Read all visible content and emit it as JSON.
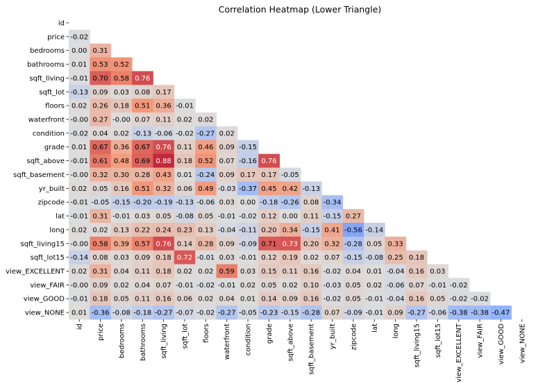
{
  "chart_data": {
    "type": "heatmap",
    "title": "Correlation Heatmap (Lower Triangle)",
    "xlabel": "",
    "ylabel": "",
    "colormap": "coolwarm",
    "vmin": -1,
    "vmax": 1,
    "colorbar": false,
    "mask": "upper-triangle-including-diagonal",
    "variables": [
      "id",
      "price",
      "bedrooms",
      "bathrooms",
      "sqft_living",
      "sqft_lot",
      "floors",
      "waterfront",
      "condition",
      "grade",
      "sqft_above",
      "sqft_basement",
      "yr_built",
      "zipcode",
      "lat",
      "long",
      "sqft_living15",
      "sqft_lot15",
      "view_EXCELLENT",
      "view_FAIR",
      "view_GOOD",
      "view_NONE"
    ],
    "lower_triangle": [
      [],
      [
        "-0.02"
      ],
      [
        "0.00",
        "0.31"
      ],
      [
        "0.01",
        "0.53",
        "0.52"
      ],
      [
        "-0.01",
        "0.70",
        "0.58",
        "0.76"
      ],
      [
        "-0.13",
        "0.09",
        "0.03",
        "0.08",
        "0.17"
      ],
      [
        "0.02",
        "0.26",
        "0.18",
        "0.51",
        "0.36",
        "-0.01"
      ],
      [
        "-0.00",
        "0.27",
        "-0.00",
        "0.07",
        "0.11",
        "0.02",
        "0.02"
      ],
      [
        "-0.02",
        "0.04",
        "0.02",
        "-0.13",
        "-0.06",
        "-0.02",
        "-0.27",
        "0.02"
      ],
      [
        "0.01",
        "0.67",
        "0.36",
        "0.67",
        "0.76",
        "0.11",
        "0.46",
        "0.09",
        "-0.15"
      ],
      [
        "-0.01",
        "0.61",
        "0.48",
        "0.69",
        "0.88",
        "0.18",
        "0.52",
        "0.07",
        "-0.16",
        "0.76"
      ],
      [
        "-0.00",
        "0.32",
        "0.30",
        "0.28",
        "0.43",
        "0.01",
        "-0.24",
        "0.09",
        "0.17",
        "0.17",
        "-0.05"
      ],
      [
        "0.02",
        "0.05",
        "0.16",
        "0.51",
        "0.32",
        "0.06",
        "0.49",
        "-0.03",
        "-0.37",
        "0.45",
        "0.42",
        "-0.13"
      ],
      [
        "-0.01",
        "-0.05",
        "-0.15",
        "-0.20",
        "-0.19",
        "-0.13",
        "-0.06",
        "0.03",
        "0.00",
        "-0.18",
        "-0.26",
        "0.08",
        "-0.34"
      ],
      [
        "-0.01",
        "0.31",
        "-0.01",
        "0.03",
        "0.05",
        "-0.08",
        "0.05",
        "-0.01",
        "-0.02",
        "0.12",
        "0.00",
        "0.11",
        "-0.15",
        "0.27"
      ],
      [
        "0.02",
        "0.02",
        "0.13",
        "0.22",
        "0.24",
        "0.23",
        "0.13",
        "-0.04",
        "-0.11",
        "0.20",
        "0.34",
        "-0.15",
        "0.41",
        "-0.56",
        "-0.14"
      ],
      [
        "-0.00",
        "0.58",
        "0.39",
        "0.57",
        "0.76",
        "0.14",
        "0.28",
        "0.09",
        "-0.09",
        "0.71",
        "0.73",
        "0.20",
        "0.32",
        "-0.28",
        "0.05",
        "0.33"
      ],
      [
        "-0.14",
        "0.08",
        "0.03",
        "0.09",
        "0.18",
        "0.72",
        "-0.01",
        "0.03",
        "-0.01",
        "0.12",
        "0.19",
        "0.02",
        "0.07",
        "-0.15",
        "-0.08",
        "0.25",
        "0.18"
      ],
      [
        "0.02",
        "0.31",
        "0.04",
        "0.11",
        "0.18",
        "0.02",
        "0.02",
        "0.59",
        "0.03",
        "0.15",
        "0.11",
        "0.16",
        "-0.02",
        "0.04",
        "0.01",
        "-0.04",
        "0.16",
        "0.03"
      ],
      [
        "-0.00",
        "0.09",
        "0.02",
        "0.04",
        "0.07",
        "-0.01",
        "-0.02",
        "-0.01",
        "0.02",
        "0.05",
        "0.02",
        "0.10",
        "-0.03",
        "0.05",
        "0.02",
        "-0.06",
        "0.07",
        "-0.01",
        "-0.02"
      ],
      [
        "-0.01",
        "0.18",
        "0.05",
        "0.11",
        "0.16",
        "0.06",
        "0.02",
        "0.04",
        "0.01",
        "0.14",
        "0.09",
        "0.16",
        "-0.02",
        "0.05",
        "-0.01",
        "-0.04",
        "0.16",
        "0.05",
        "-0.02",
        "-0.02"
      ],
      [
        "0.01",
        "-0.36",
        "-0.08",
        "-0.18",
        "-0.27",
        "-0.07",
        "-0.02",
        "-0.27",
        "-0.05",
        "-0.23",
        "-0.15",
        "-0.28",
        "0.07",
        "-0.09",
        "-0.01",
        "0.09",
        "-0.27",
        "-0.06",
        "-0.38",
        "-0.38",
        "-0.47"
      ]
    ]
  }
}
